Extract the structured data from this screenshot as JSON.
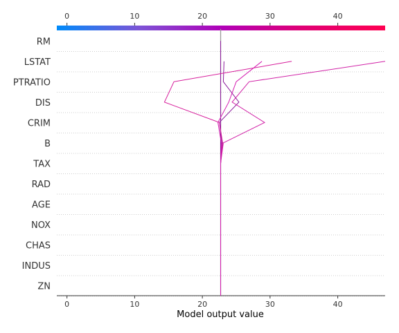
{
  "chart_data": {
    "type": "decision_plot",
    "xlabel": "Model output value",
    "xlim": [
      -1.5,
      47
    ],
    "ticks": [
      0,
      10,
      20,
      30,
      40
    ],
    "base_value": 22.7,
    "features": [
      "RM",
      "LSTAT",
      "PTRATIO",
      "DIS",
      "CRIM",
      "B",
      "TAX",
      "RAD",
      "AGE",
      "NOX",
      "CHAS",
      "INDUS",
      "ZN"
    ],
    "colorbar": {
      "min": -1.5,
      "max": 47,
      "colors": [
        "#008bfa",
        "#7c54d6",
        "#b000b8",
        "#e00074",
        "#ff0051"
      ]
    },
    "base_line_color": "#999999",
    "lines": [
      {
        "color": "#8b1a9b",
        "values": [
          22.7,
          22.7,
          22.7,
          22.7,
          22.7,
          22.7,
          22.7,
          22.7,
          22.7,
          22.7,
          22.7,
          22.7,
          22.7,
          22.7
        ]
      },
      {
        "color": "#8b1a9b",
        "values": [
          22.7,
          22.7,
          22.7,
          22.7,
          22.7,
          22.7,
          22.7,
          22.7,
          22.9,
          22.5,
          25.4,
          23.1,
          23.2
        ]
      },
      {
        "color": "#d61b9a",
        "values": [
          22.7,
          22.7,
          22.7,
          22.7,
          22.7,
          22.7,
          22.7,
          22.7,
          23.0,
          22.5,
          14.4,
          15.8,
          33.2
        ]
      },
      {
        "color": "#d01fa6",
        "values": [
          22.7,
          22.7,
          22.7,
          22.7,
          22.7,
          22.7,
          22.7,
          22.7,
          23.1,
          29.2,
          24.4,
          26.9,
          47.0
        ]
      },
      {
        "color": "#d41cb0",
        "values": [
          22.7,
          22.7,
          22.7,
          22.7,
          22.7,
          22.7,
          22.7,
          22.7,
          22.8,
          22.3,
          23.9,
          25.0,
          28.8
        ]
      }
    ]
  }
}
